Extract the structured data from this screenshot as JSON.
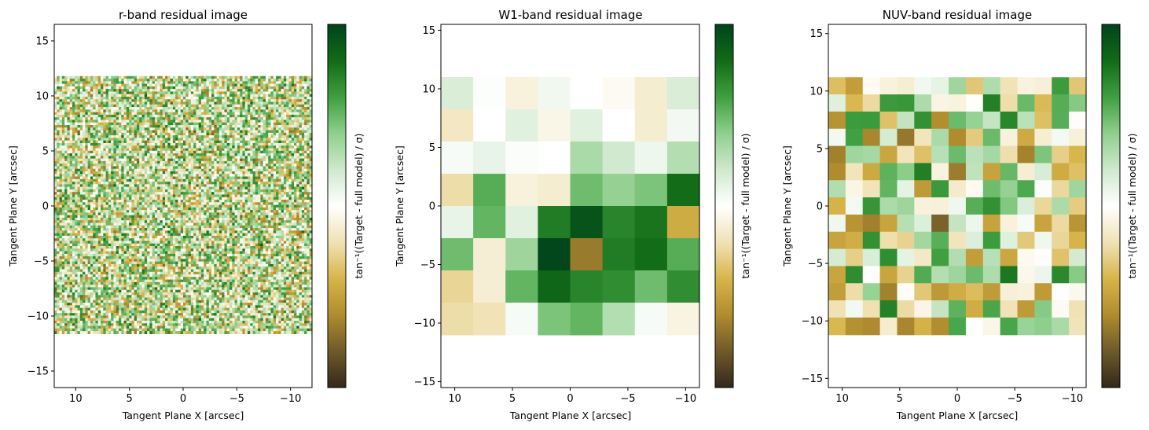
{
  "colormap": {
    "stops": [
      "#33281a",
      "#6e5a2a",
      "#b08c2e",
      "#d7b54a",
      "#f0e2b4",
      "#ffffff",
      "#cfe9cd",
      "#8fcf8d",
      "#3f9f3f",
      "#126b17",
      "#00441b"
    ]
  },
  "chart_data": [
    {
      "type": "heatmap",
      "title": "r-band residual image",
      "xlabel": "Tangent Plane X [arcsec]",
      "ylabel": "Tangent Plane Y [arcsec]",
      "colorbar_label": "tan⁻¹((Target - full model) / σ)",
      "xlim": [
        12,
        -12
      ],
      "ylim": [
        -16.5,
        16.5
      ],
      "xticks": [
        10,
        5,
        0,
        -5,
        -10
      ],
      "yticks": [
        15,
        10,
        5,
        0,
        -5,
        -10,
        -15
      ],
      "xtick_labels": [
        "10",
        "5",
        "0",
        "−5",
        "−10"
      ],
      "ytick_labels": [
        "15",
        "10",
        "5",
        "0",
        "−5",
        "−10",
        "−15"
      ],
      "extent": [
        12,
        -12,
        -11.6,
        11.8
      ],
      "grid_size": [
        100,
        100
      ],
      "value_range": [
        -1.5708,
        1.5708
      ],
      "pattern": "noise"
    },
    {
      "type": "heatmap",
      "title": "W1-band residual image",
      "xlabel": "Tangent Plane X [arcsec]",
      "ylabel": "Tangent Plane Y [arcsec]",
      "colorbar_label": "tan⁻¹((Target - full model) / σ)",
      "xlim": [
        11.2,
        -11.2
      ],
      "ylim": [
        -15.5,
        15.5
      ],
      "xticks": [
        10,
        5,
        0,
        -5,
        -10
      ],
      "yticks": [
        15,
        10,
        5,
        0,
        -5,
        -10,
        -15
      ],
      "xtick_labels": [
        "10",
        "5",
        "0",
        "−5",
        "−10"
      ],
      "ytick_labels": [
        "15",
        "10",
        "5",
        "0",
        "−5",
        "−10",
        "−15"
      ],
      "extent": [
        11.2,
        -11.2,
        -11,
        11
      ],
      "grid_size": [
        8,
        8
      ],
      "value_range": [
        -1.5708,
        1.5708
      ],
      "values": [
        [
          0.25,
          0.02,
          -0.15,
          0.1,
          0.0,
          -0.05,
          -0.2,
          0.25
        ],
        [
          -0.25,
          0.0,
          0.2,
          -0.1,
          0.2,
          0.0,
          -0.2,
          0.08
        ],
        [
          0.05,
          0.15,
          0.03,
          0.0,
          0.5,
          0.3,
          0.12,
          0.45
        ],
        [
          -0.35,
          0.85,
          -0.15,
          -0.2,
          0.75,
          0.6,
          0.7,
          1.25
        ],
        [
          0.15,
          0.8,
          0.2,
          1.15,
          1.45,
          1.1,
          1.2,
          -0.7
        ],
        [
          0.75,
          -0.18,
          0.55,
          1.55,
          -1.05,
          1.15,
          1.25,
          0.85
        ],
        [
          -0.4,
          -0.18,
          0.8,
          1.3,
          1.1,
          1.05,
          0.75,
          1.05
        ],
        [
          -0.35,
          -0.3,
          0.05,
          0.7,
          0.8,
          0.45,
          0.05,
          -0.12
        ]
      ]
    },
    {
      "type": "heatmap",
      "title": "NUV-band residual image",
      "xlabel": "Tangent Plane X [arcsec]",
      "ylabel": "Tangent Plane Y [arcsec]",
      "colorbar_label": "tan⁻¹((Target - full model) / σ)",
      "xlim": [
        11.2,
        -11.2
      ],
      "ylim": [
        -15.8,
        15.8
      ],
      "xticks": [
        10,
        5,
        0,
        -5,
        -10
      ],
      "yticks": [
        15,
        10,
        5,
        0,
        -5,
        -10,
        -15
      ],
      "xtick_labels": [
        "10",
        "5",
        "0",
        "−5",
        "−10"
      ],
      "ytick_labels": [
        "15",
        "10",
        "5",
        "0",
        "−5",
        "−10",
        "−15"
      ],
      "extent": [
        11.2,
        -11.2,
        -11.2,
        11.2
      ],
      "grid_size": [
        15,
        15
      ],
      "value_range": [
        -1.5708,
        1.5708
      ],
      "pattern": "noise"
    }
  ]
}
